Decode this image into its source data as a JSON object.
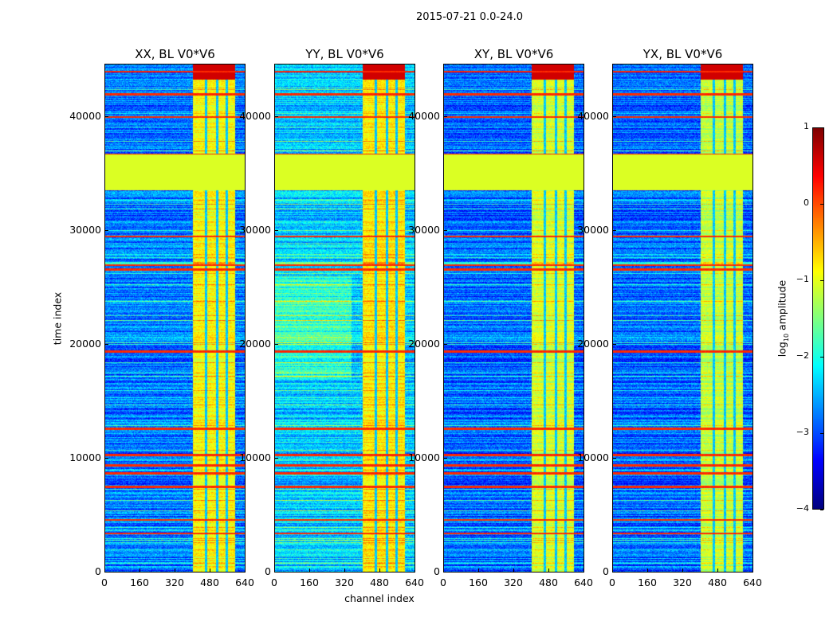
{
  "chart_data": {
    "type": "heatmap",
    "title": "2015-07-21 0.0-24.0",
    "xlabel": "channel index",
    "ylabel": "time index",
    "xlim": [
      0,
      640
    ],
    "ylim": [
      0,
      44600
    ],
    "xticks": [
      "0",
      "160",
      "320",
      "480",
      "640"
    ],
    "xtick_values": [
      0,
      160,
      320,
      480,
      640
    ],
    "yticks": [
      "0",
      "10000",
      "20000",
      "30000",
      "40000"
    ],
    "ytick_values": [
      0,
      10000,
      20000,
      30000,
      40000
    ],
    "panels": [
      {
        "title": "XX, BL V0*V6",
        "background_level": -2.8,
        "rfi_level": -0.9
      },
      {
        "title": "YY, BL V0*V6",
        "background_level": -2.4,
        "rfi_level": -0.8
      },
      {
        "title": "XY, BL V0*V6",
        "background_level": -2.9,
        "rfi_level": -1.1
      },
      {
        "title": "YX, BL V0*V6",
        "background_level": -2.9,
        "rfi_level": -1.2
      }
    ],
    "rfi_channel_range": [
      400,
      595
    ],
    "rfi_notch_channels": [
      460,
      512,
      555
    ],
    "flagged_time_range": [
      33600,
      36700
    ],
    "flagged_level": -1.05,
    "strong_rows": [
      44000,
      42000,
      40000,
      36700,
      29500,
      27000,
      26600,
      19400,
      12600,
      10300,
      9400,
      8700,
      7500,
      4600,
      3400
    ],
    "colorbar": {
      "label_prefix": "log",
      "label_sub": "10",
      "label_suffix": " amplitude",
      "range": [
        -4,
        1
      ],
      "ticks": [
        "1",
        "0",
        "−1",
        "−2",
        "−3",
        "−4"
      ],
      "tick_values": [
        1,
        0,
        -1,
        -2,
        -3,
        -4
      ],
      "colormap": "jet"
    }
  }
}
